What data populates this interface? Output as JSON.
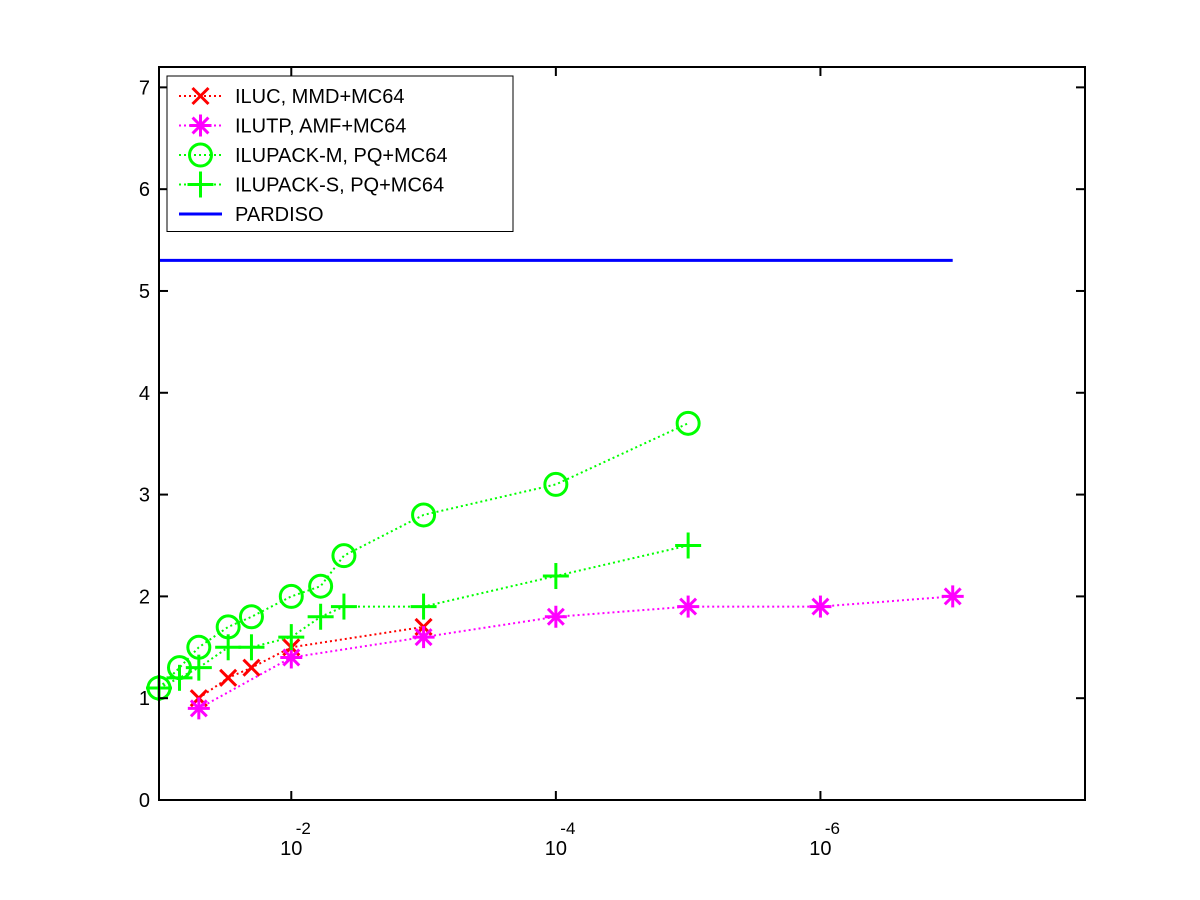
{
  "chart_data": {
    "type": "line",
    "title": "",
    "xlabel": "",
    "ylabel": "",
    "x_scale": "log",
    "x_direction": "reversed",
    "xlim": [
      0.1,
      1e-08
    ],
    "ylim": [
      0,
      7.2
    ],
    "grid": false,
    "legend_position": "top-left",
    "y_ticks": [
      "0",
      "1",
      "2",
      "3",
      "4",
      "5",
      "6",
      "7"
    ],
    "x_ticks": [
      {
        "value": 0.01,
        "base": "10",
        "exponent": "-2"
      },
      {
        "value": 0.0001,
        "base": "10",
        "exponent": "-4"
      },
      {
        "value": 1e-06,
        "base": "10",
        "exponent": "-6"
      }
    ],
    "series": [
      {
        "name": "ILUC, MMD+MC64",
        "color": "#ff0000",
        "marker": "x",
        "line_style": "dotted",
        "points": [
          {
            "x": 0.05,
            "y": 1.0
          },
          {
            "x": 0.03,
            "y": 1.2
          },
          {
            "x": 0.02,
            "y": 1.3
          },
          {
            "x": 0.01,
            "y": 1.5
          },
          {
            "x": 0.001,
            "y": 1.7
          }
        ]
      },
      {
        "name": "ILUTP, AMF+MC64",
        "color": "#ff00ff",
        "marker": "asterisk",
        "line_style": "dotted",
        "points": [
          {
            "x": 0.05,
            "y": 0.9
          },
          {
            "x": 0.01,
            "y": 1.4
          },
          {
            "x": 0.001,
            "y": 1.6
          },
          {
            "x": 0.0001,
            "y": 1.8
          },
          {
            "x": 1e-05,
            "y": 1.9
          },
          {
            "x": 1e-06,
            "y": 1.9
          },
          {
            "x": 1e-07,
            "y": 2.0
          }
        ]
      },
      {
        "name": "ILUPACK-M, PQ+MC64",
        "color": "#00ff00",
        "marker": "circle",
        "line_style": "dotted",
        "points": [
          {
            "x": 0.1,
            "y": 1.1
          },
          {
            "x": 0.07,
            "y": 1.3
          },
          {
            "x": 0.05,
            "y": 1.5
          },
          {
            "x": 0.03,
            "y": 1.7
          },
          {
            "x": 0.02,
            "y": 1.8
          },
          {
            "x": 0.01,
            "y": 2.0
          },
          {
            "x": 0.006,
            "y": 2.1
          },
          {
            "x": 0.004,
            "y": 2.4
          },
          {
            "x": 0.001,
            "y": 2.8
          },
          {
            "x": 0.0001,
            "y": 3.1
          },
          {
            "x": 1e-05,
            "y": 3.7
          }
        ]
      },
      {
        "name": "ILUPACK-S, PQ+MC64",
        "color": "#00ff00",
        "marker": "plus",
        "line_style": "dotted",
        "points": [
          {
            "x": 0.1,
            "y": 1.1
          },
          {
            "x": 0.07,
            "y": 1.2
          },
          {
            "x": 0.05,
            "y": 1.3
          },
          {
            "x": 0.03,
            "y": 1.5
          },
          {
            "x": 0.02,
            "y": 1.5
          },
          {
            "x": 0.01,
            "y": 1.6
          },
          {
            "x": 0.006,
            "y": 1.8
          },
          {
            "x": 0.004,
            "y": 1.9
          },
          {
            "x": 0.001,
            "y": 1.9
          },
          {
            "x": 0.0001,
            "y": 2.2
          },
          {
            "x": 1e-05,
            "y": 2.5
          }
        ]
      },
      {
        "name": "PARDISO",
        "color": "#0000ff",
        "marker": "none",
        "line_style": "solid",
        "points": [
          {
            "x": 0.1,
            "y": 5.3
          },
          {
            "x": 1e-07,
            "y": 5.3
          }
        ]
      }
    ]
  }
}
